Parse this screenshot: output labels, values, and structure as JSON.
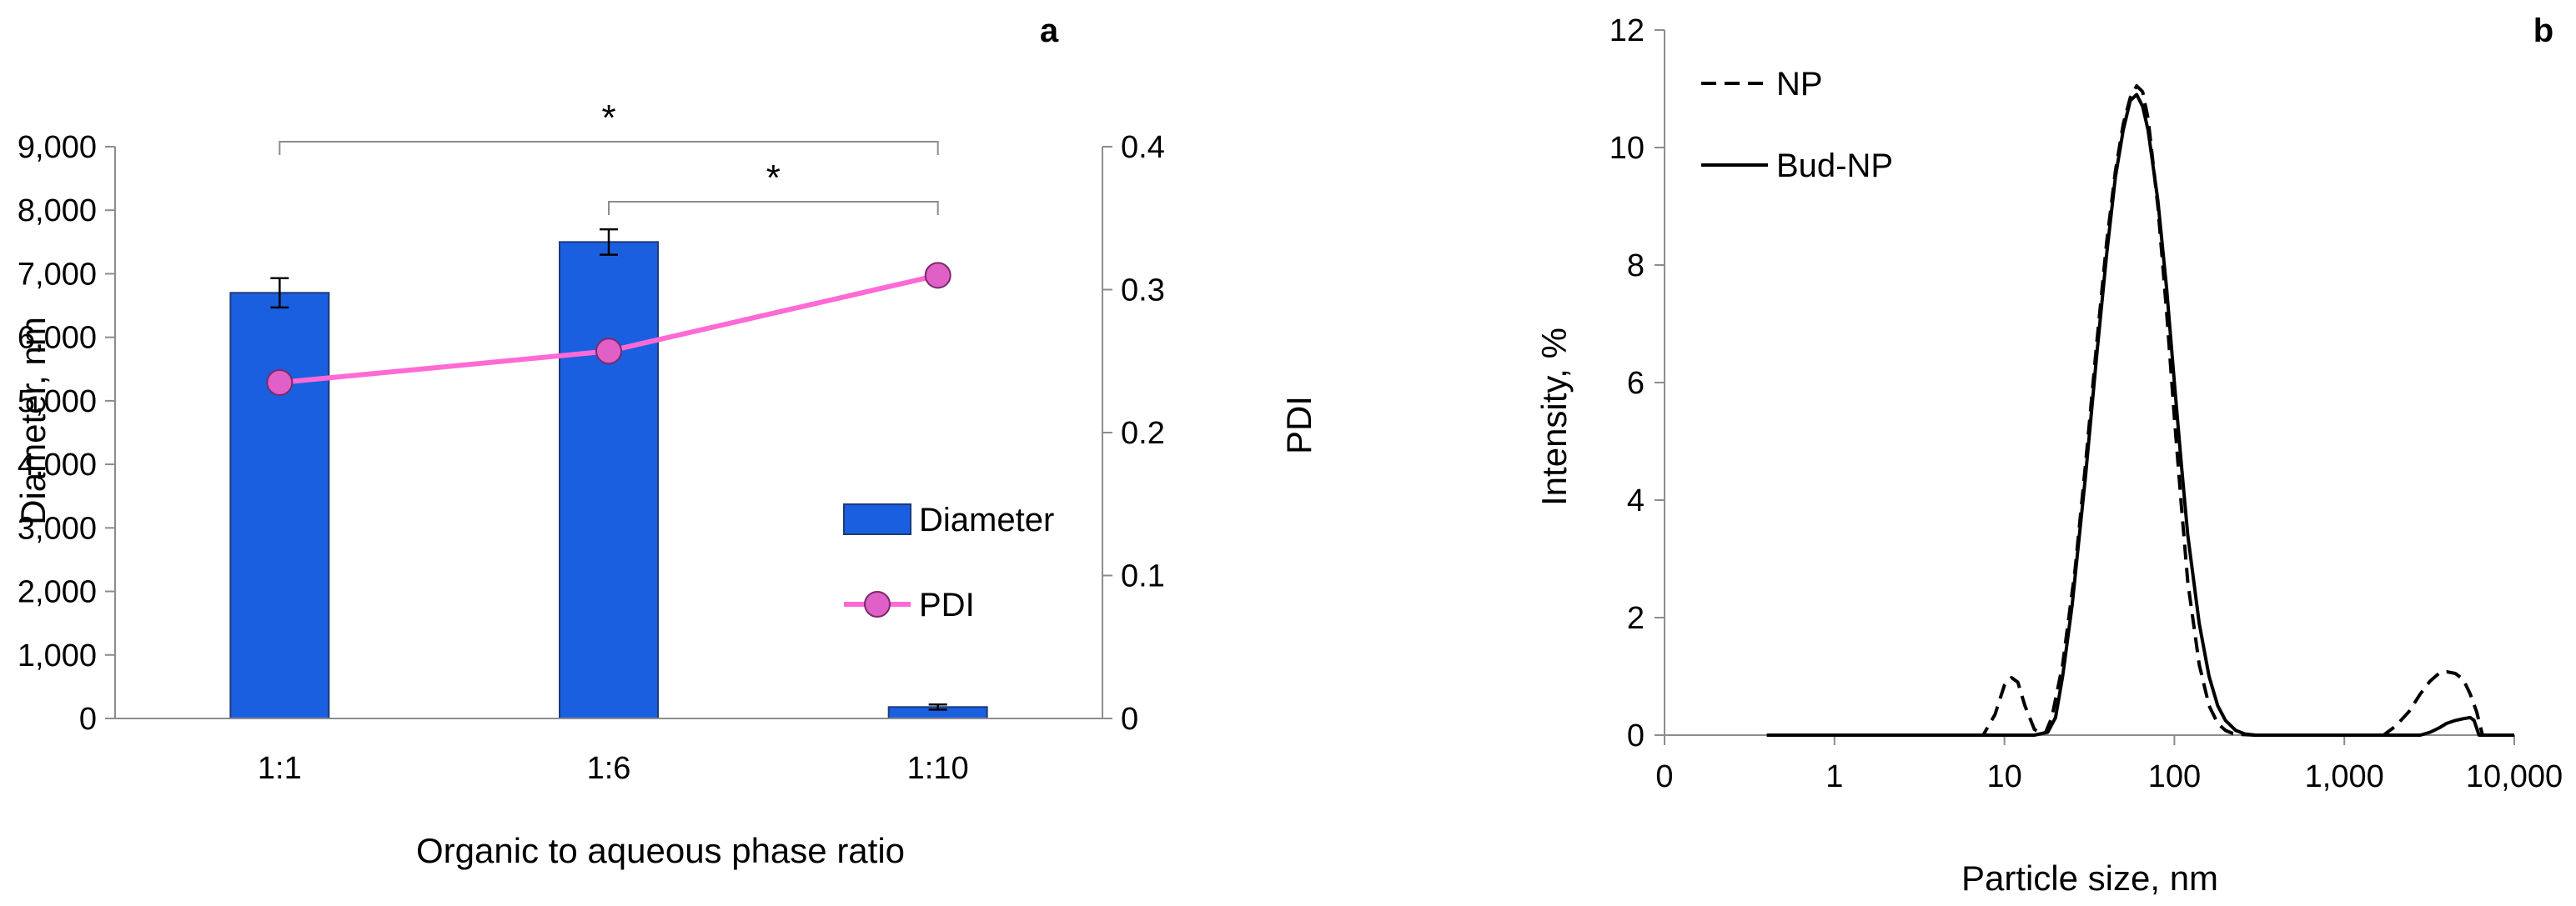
{
  "colors": {
    "bar_fill": "#1a5fe0",
    "bar_stroke": "#1f3a7a",
    "pdi_line": "#ff6ad5",
    "pdi_marker_fill": "#e060c8",
    "axis": "#8c8c8c",
    "black": "#000000"
  },
  "chart_data": [
    {
      "panel": "a",
      "type": "bar",
      "categories": [
        "1:1",
        "1:6",
        "1:10"
      ],
      "xlabel": "Organic to aqueous phase ratio",
      "ylabel": "Diameter, nm",
      "ylim": [
        0,
        9000
      ],
      "yticks": [
        0,
        1000,
        2000,
        3000,
        4000,
        5000,
        6000,
        7000,
        8000,
        9000
      ],
      "ytick_labels": [
        "0",
        "1,000",
        "2,000",
        "3,000",
        "4,000",
        "5,000",
        "6,000",
        "7,000",
        "8,000",
        "9,000"
      ],
      "y2label": "PDI",
      "y2lim": [
        0,
        0.4
      ],
      "y2ticks": [
        0,
        0.1,
        0.2,
        0.3,
        0.4
      ],
      "y2tick_labels": [
        "0",
        "0.1",
        "0.2",
        "0.3",
        "0.4"
      ],
      "series": [
        {
          "name": "Diameter",
          "kind": "bar",
          "axis": "left",
          "values": [
            6700,
            7500,
            180
          ],
          "errors": [
            230,
            200,
            40
          ]
        },
        {
          "name": "PDI",
          "kind": "line",
          "axis": "right",
          "values": [
            0.235,
            0.257,
            0.31
          ]
        }
      ],
      "significance": [
        {
          "from": "1:1",
          "to": "1:10",
          "label": "*"
        },
        {
          "from": "1:6",
          "to": "1:10",
          "label": "*"
        }
      ],
      "legend_position": "center-right"
    },
    {
      "panel": "b",
      "type": "line",
      "xscale": "log",
      "xlabel": "Particle size, nm",
      "ylabel": "Intensity, %",
      "xlim": [
        0.1,
        10000
      ],
      "ylim": [
        0,
        12
      ],
      "xticks": [
        0.1,
        1,
        10,
        100,
        1000,
        10000
      ],
      "xtick_labels": [
        "0",
        "1",
        "10",
        "100",
        "1,000",
        "10,000"
      ],
      "yticks": [
        0,
        2,
        4,
        6,
        8,
        10,
        12
      ],
      "ytick_labels": [
        "0",
        "2",
        "4",
        "6",
        "8",
        "10",
        "12"
      ],
      "series": [
        {
          "name": "NP",
          "style": "dashed",
          "x": [
            0.4,
            1,
            5,
            7.5,
            8.8,
            10,
            11,
            12,
            13.2,
            15,
            16.5,
            17.5,
            19,
            22,
            26,
            30,
            35,
            40,
            45,
            50,
            55,
            60,
            65,
            70,
            80,
            90,
            100,
            110,
            120,
            140,
            160,
            180,
            200,
            220,
            250,
            300,
            500,
            1000,
            1700,
            2000,
            2400,
            2800,
            3200,
            3600,
            4000,
            4500,
            5000,
            5500,
            6000,
            6500,
            10000
          ],
          "y": [
            0,
            0,
            0,
            0,
            0.35,
            0.85,
            0.98,
            0.9,
            0.5,
            0.1,
            0.02,
            0.05,
            0.3,
            1.2,
            2.8,
            4.6,
            6.7,
            8.4,
            9.6,
            10.4,
            10.85,
            11.05,
            10.95,
            10.5,
            9.0,
            7.2,
            5.4,
            3.9,
            2.6,
            1.2,
            0.5,
            0.2,
            0.08,
            0.03,
            0.01,
            0,
            0,
            0,
            0,
            0.15,
            0.4,
            0.7,
            0.92,
            1.05,
            1.08,
            1.05,
            0.95,
            0.7,
            0.4,
            0,
            0
          ]
        },
        {
          "name": "Bud-NP",
          "style": "solid",
          "x": [
            0.4,
            1,
            10,
            15,
            18,
            20,
            22,
            25,
            30,
            35,
            40,
            45,
            50,
            55,
            60,
            65,
            70,
            80,
            90,
            100,
            110,
            120,
            140,
            160,
            180,
            200,
            230,
            260,
            300,
            500,
            1000,
            2000,
            2800,
            3200,
            3600,
            4000,
            4500,
            5000,
            5500,
            5800,
            6200,
            10000
          ],
          "y": [
            0,
            0,
            0,
            0,
            0.05,
            0.3,
            1.0,
            2.2,
            4.4,
            6.5,
            8.2,
            9.5,
            10.3,
            10.8,
            10.9,
            10.7,
            10.3,
            9.1,
            7.6,
            6.0,
            4.6,
            3.4,
            1.9,
            1.0,
            0.5,
            0.25,
            0.08,
            0.02,
            0,
            0,
            0,
            0,
            0,
            0.05,
            0.12,
            0.2,
            0.25,
            0.28,
            0.3,
            0.25,
            0,
            0
          ]
        }
      ],
      "legend_position": "top-left"
    }
  ]
}
